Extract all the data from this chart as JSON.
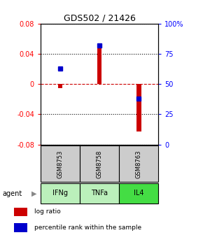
{
  "title": "GDS502 / 21426",
  "samples": [
    "GSM8753",
    "GSM8758",
    "GSM8763"
  ],
  "agents": [
    "IFNg",
    "TNFa",
    "IL4"
  ],
  "log_ratios": [
    -0.005,
    0.048,
    -0.063
  ],
  "percentile_ranks": [
    63,
    82,
    38
  ],
  "ylim_left": [
    -0.08,
    0.08
  ],
  "ylim_right": [
    0,
    100
  ],
  "yticks_left": [
    -0.08,
    -0.04,
    0,
    0.04,
    0.08
  ],
  "yticks_right": [
    0,
    25,
    50,
    75,
    100
  ],
  "bar_color": "#cc0000",
  "dot_color": "#0000cc",
  "agent_colors": [
    "#bbf0bb",
    "#bbf0bb",
    "#44dd44"
  ],
  "sample_color": "#cccccc",
  "zero_line_color": "#cc0000",
  "legend_bar_label": "log ratio",
  "legend_dot_label": "percentile rank within the sample",
  "agent_label": "agent",
  "bar_width": 0.12
}
